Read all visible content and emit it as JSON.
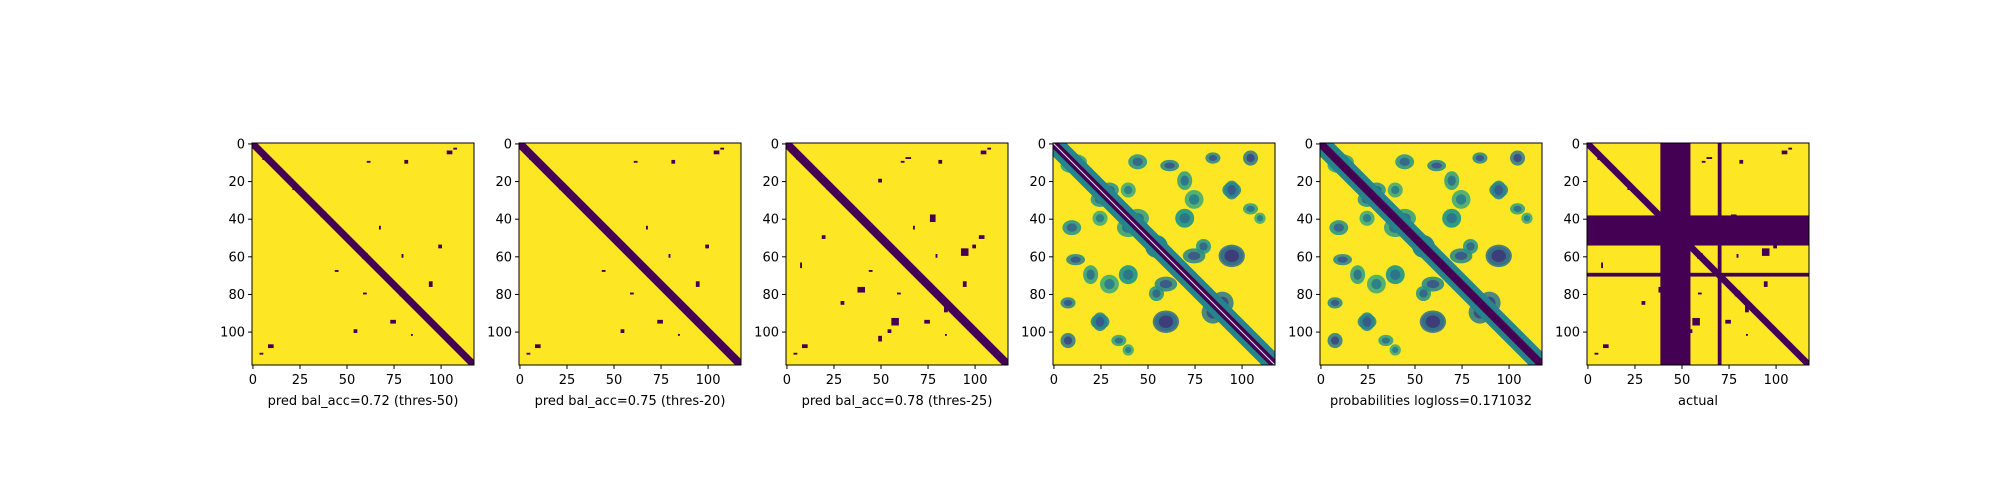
{
  "colors": {
    "dark": "#440154",
    "yellow": "#fde725",
    "teal": "#21918c",
    "green": "#5ec962"
  },
  "chart_data": [
    {
      "type": "heatmap",
      "title": "",
      "xlabel": "pred bal_acc=0.72 (thres-50)",
      "ylabel": "",
      "xlim": [
        0,
        118
      ],
      "ylim": [
        118,
        0
      ],
      "xticks": [
        "0",
        "25",
        "50",
        "75",
        "100"
      ],
      "yticks": [
        "0",
        "20",
        "40",
        "60",
        "80",
        "100"
      ],
      "colormap": "viridis",
      "values": "binary"
    },
    {
      "type": "heatmap",
      "title": "",
      "xlabel": "pred bal_acc=0.75 (thres-20)",
      "ylabel": "",
      "xlim": [
        0,
        118
      ],
      "ylim": [
        118,
        0
      ],
      "xticks": [
        "0",
        "25",
        "50",
        "75",
        "100"
      ],
      "yticks": [
        "0",
        "20",
        "40",
        "60",
        "80",
        "100"
      ],
      "colormap": "viridis",
      "values": "binary"
    },
    {
      "type": "heatmap",
      "title": "",
      "xlabel": "pred bal_acc=0.78 (thres-25)",
      "ylabel": "",
      "xlim": [
        0,
        118
      ],
      "ylim": [
        118,
        0
      ],
      "xticks": [
        "0",
        "25",
        "50",
        "75",
        "100"
      ],
      "yticks": [
        "0",
        "20",
        "40",
        "60",
        "80",
        "100"
      ],
      "colormap": "viridis",
      "values": "binary"
    },
    {
      "type": "heatmap",
      "title": "",
      "xlabel": "",
      "ylabel": "",
      "xlim": [
        0,
        118
      ],
      "ylim": [
        118,
        0
      ],
      "xticks": [
        "0",
        "25",
        "50",
        "75",
        "100"
      ],
      "yticks": [
        "0",
        "20",
        "40",
        "60",
        "80",
        "100"
      ],
      "colormap": "viridis",
      "values": "continuous"
    },
    {
      "type": "heatmap",
      "title": "",
      "xlabel": "probabilities logloss=0.171032",
      "ylabel": "",
      "xlim": [
        0,
        118
      ],
      "ylim": [
        118,
        0
      ],
      "xticks": [
        "0",
        "25",
        "50",
        "75",
        "100"
      ],
      "yticks": [
        "0",
        "20",
        "40",
        "60",
        "80",
        "100"
      ],
      "colormap": "viridis",
      "values": "continuous"
    },
    {
      "type": "heatmap",
      "title": "",
      "xlabel": "actual",
      "ylabel": "",
      "xlim": [
        0,
        118
      ],
      "ylim": [
        118,
        0
      ],
      "xticks": [
        "0",
        "25",
        "50",
        "75",
        "100"
      ],
      "yticks": [
        "0",
        "20",
        "40",
        "60",
        "80",
        "100"
      ],
      "colormap": "viridis",
      "values": "binary"
    }
  ]
}
